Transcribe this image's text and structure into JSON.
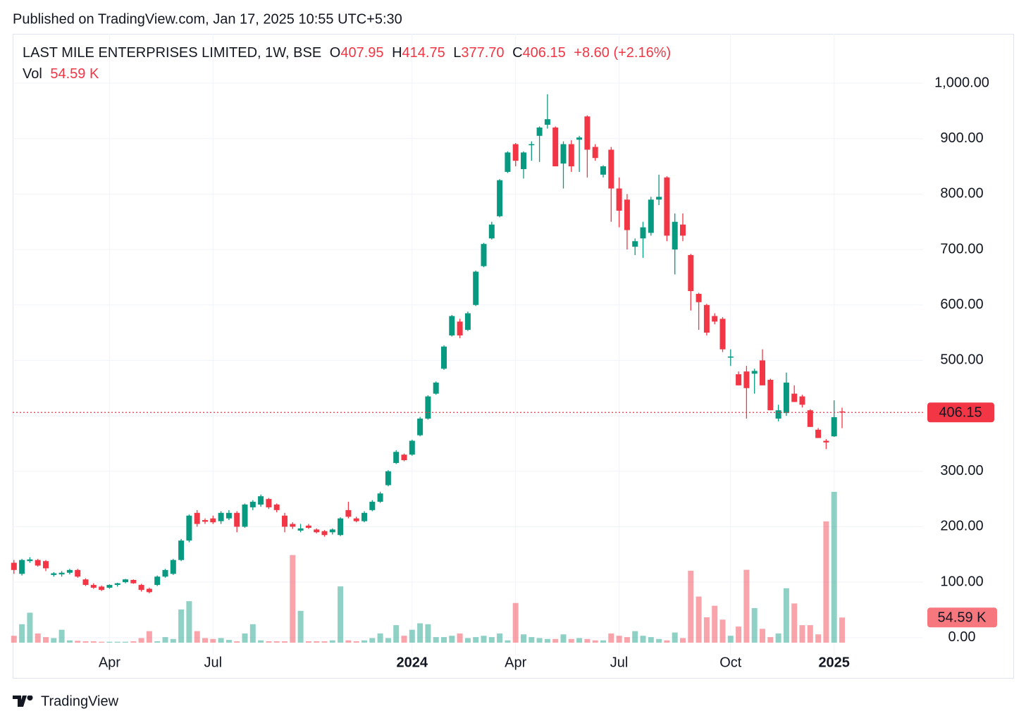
{
  "published": "Published on TradingView.com, Jan 17, 2025 10:55 UTC+5:30",
  "brand": "TradingView",
  "legend": {
    "symbol": "LAST MILE ENTERPRISES LIMITED, 1W, BSE",
    "open_label": "O",
    "open": "407.95",
    "high_label": "H",
    "high": "414.75",
    "low_label": "L",
    "low": "377.70",
    "close_label": "C",
    "change": "+8.60 (+2.16%)",
    "volume_label": "Vol"
  },
  "chart_data": {
    "type": "candlestick",
    "up_color": "#089981",
    "down_color": "#f23645",
    "grid": true,
    "ylim": [
      -32,
      1089
    ],
    "yticks": [
      {
        "value": 0,
        "label": "0.00"
      },
      {
        "value": 100,
        "label": "100.00"
      },
      {
        "value": 200,
        "label": "200.00"
      },
      {
        "value": 300,
        "label": "300.00"
      },
      {
        "value": 400,
        "label": "400.00"
      },
      {
        "value": 500,
        "label": "500.00"
      },
      {
        "value": 600,
        "label": "600.00"
      },
      {
        "value": 700,
        "label": "700.00"
      },
      {
        "value": 800,
        "label": "800.00"
      },
      {
        "value": 900,
        "label": "900.00"
      },
      {
        "value": 1000,
        "label": "1,000.00"
      }
    ],
    "volume_ylim": [
      0,
      1320000
    ],
    "last_price": {
      "value": 406.15,
      "label": "406.15"
    },
    "last_volume": {
      "value": 54590,
      "label": "54.59 K"
    },
    "categories": [
      null,
      null,
      null,
      null,
      null,
      null,
      null,
      null,
      null,
      null,
      null,
      null,
      "Apr",
      null,
      null,
      null,
      null,
      null,
      null,
      null,
      null,
      null,
      null,
      null,
      null,
      "Jul",
      null,
      null,
      null,
      null,
      null,
      null,
      null,
      null,
      null,
      null,
      null,
      null,
      null,
      null,
      null,
      null,
      null,
      null,
      null,
      null,
      null,
      null,
      null,
      null,
      "2024",
      null,
      null,
      null,
      null,
      null,
      null,
      null,
      null,
      null,
      null,
      null,
      null,
      "Apr",
      null,
      null,
      null,
      null,
      null,
      null,
      null,
      null,
      null,
      null,
      null,
      null,
      "Jul",
      null,
      null,
      null,
      null,
      null,
      null,
      null,
      null,
      null,
      null,
      null,
      null,
      null,
      "Oct",
      null,
      null,
      null,
      null,
      null,
      null,
      null,
      null,
      null,
      null,
      null,
      null,
      "2025",
      null
    ],
    "open": [
      135,
      115,
      138,
      140,
      138,
      113,
      114,
      117,
      122,
      105,
      95,
      92,
      90,
      95,
      100,
      104,
      95,
      88,
      95,
      110,
      115,
      140,
      175,
      225,
      212,
      215,
      210,
      215,
      225,
      200,
      235,
      240,
      250,
      240,
      220,
      205,
      193,
      202,
      195,
      192,
      190,
      185,
      230,
      215,
      210,
      230,
      245,
      275,
      315,
      330,
      330,
      365,
      395,
      440,
      485,
      545,
      570,
      555,
      600,
      670,
      720,
      760,
      840,
      890,
      845,
      888,
      905,
      925,
      920,
      855,
      890,
      898,
      940,
      885,
      835,
      880,
      810,
      790,
      705,
      720,
      730,
      790,
      830,
      700,
      745,
      690,
      620,
      600,
      580,
      575,
      505,
      475,
      480,
      476,
      500,
      465,
      395,
      405,
      440,
      435,
      410,
      375,
      355,
      363,
      407.95
    ],
    "high": [
      140,
      142,
      145,
      142,
      140,
      118,
      120,
      124,
      124,
      107,
      98,
      94,
      96,
      99,
      106,
      105,
      97,
      90,
      112,
      124,
      142,
      178,
      222,
      230,
      215,
      220,
      228,
      230,
      228,
      242,
      248,
      258,
      252,
      242,
      225,
      208,
      205,
      205,
      197,
      194,
      197,
      217,
      245,
      218,
      228,
      248,
      263,
      302,
      338,
      332,
      357,
      398,
      437,
      462,
      527,
      582,
      575,
      588,
      662,
      712,
      750,
      827,
      877,
      892,
      877,
      895,
      922,
      980,
      922,
      895,
      897,
      905,
      942,
      890,
      852,
      885,
      830,
      800,
      720,
      750,
      795,
      835,
      832,
      765,
      765,
      692,
      622,
      602,
      585,
      578,
      520,
      480,
      490,
      485,
      520,
      467,
      420,
      478,
      455,
      438,
      412,
      378,
      358,
      428,
      414.75
    ],
    "low": [
      115,
      112,
      135,
      128,
      120,
      110,
      110,
      114,
      108,
      93,
      88,
      84,
      88,
      92,
      98,
      97,
      83,
      80,
      93,
      108,
      113,
      138,
      172,
      200,
      205,
      205,
      205,
      212,
      190,
      198,
      230,
      236,
      232,
      226,
      190,
      196,
      190,
      196,
      188,
      182,
      186,
      183,
      215,
      208,
      208,
      228,
      243,
      273,
      313,
      318,
      328,
      363,
      393,
      438,
      483,
      543,
      540,
      553,
      598,
      668,
      718,
      758,
      838,
      850,
      828,
      860,
      858,
      918,
      850,
      810,
      840,
      840,
      830,
      860,
      830,
      750,
      740,
      700,
      690,
      685,
      725,
      780,
      715,
      655,
      715,
      590,
      555,
      545,
      565,
      515,
      490,
      455,
      395,
      440,
      455,
      410,
      390,
      400,
      425,
      415,
      380,
      360,
      340,
      362,
      377.7
    ],
    "close": [
      122,
      140,
      141,
      130,
      125,
      116,
      117,
      122,
      110,
      95,
      90,
      86,
      95,
      98,
      105,
      98,
      86,
      82,
      110,
      122,
      140,
      175,
      220,
      205,
      209,
      208,
      225,
      225,
      200,
      240,
      245,
      255,
      235,
      230,
      200,
      200,
      197,
      198,
      190,
      185,
      195,
      215,
      218,
      210,
      225,
      245,
      260,
      300,
      335,
      320,
      355,
      395,
      435,
      460,
      525,
      580,
      545,
      585,
      660,
      710,
      745,
      825,
      875,
      860,
      875,
      890,
      920,
      935,
      850,
      890,
      850,
      902,
      880,
      865,
      850,
      810,
      770,
      735,
      715,
      740,
      790,
      795,
      725,
      750,
      725,
      625,
      605,
      550,
      570,
      520,
      507,
      455,
      450,
      481,
      455,
      410,
      410,
      460,
      425,
      420,
      380,
      360,
      352,
      397.55,
      406.15
    ],
    "volume": [
      15000,
      40000,
      65000,
      20000,
      12000,
      10000,
      28000,
      5000,
      4000,
      3000,
      3000,
      2000,
      2000,
      2000,
      2000,
      3000,
      10000,
      25000,
      3000,
      12000,
      8000,
      72000,
      90000,
      25000,
      10000,
      8000,
      10000,
      6000,
      3000,
      20000,
      40000,
      5000,
      3000,
      3000,
      3000,
      190000,
      69000,
      3000,
      3000,
      3000,
      5000,
      122000,
      5000,
      3000,
      5000,
      10000,
      20000,
      10000,
      38000,
      15000,
      28000,
      42000,
      40000,
      12000,
      12000,
      15000,
      20000,
      10000,
      12000,
      15000,
      12000,
      20000,
      5000,
      86000,
      18000,
      12000,
      10000,
      8000,
      8000,
      18000,
      8000,
      10000,
      8000,
      5000,
      5000,
      20000,
      15000,
      12000,
      25000,
      15000,
      12000,
      8000,
      5000,
      22000,
      10000,
      156000,
      100000,
      55000,
      80000,
      50000,
      15000,
      35000,
      158000,
      75000,
      30000,
      12000,
      20000,
      118000,
      85000,
      38000,
      38000,
      18000,
      263000,
      327000,
      54590
    ]
  }
}
